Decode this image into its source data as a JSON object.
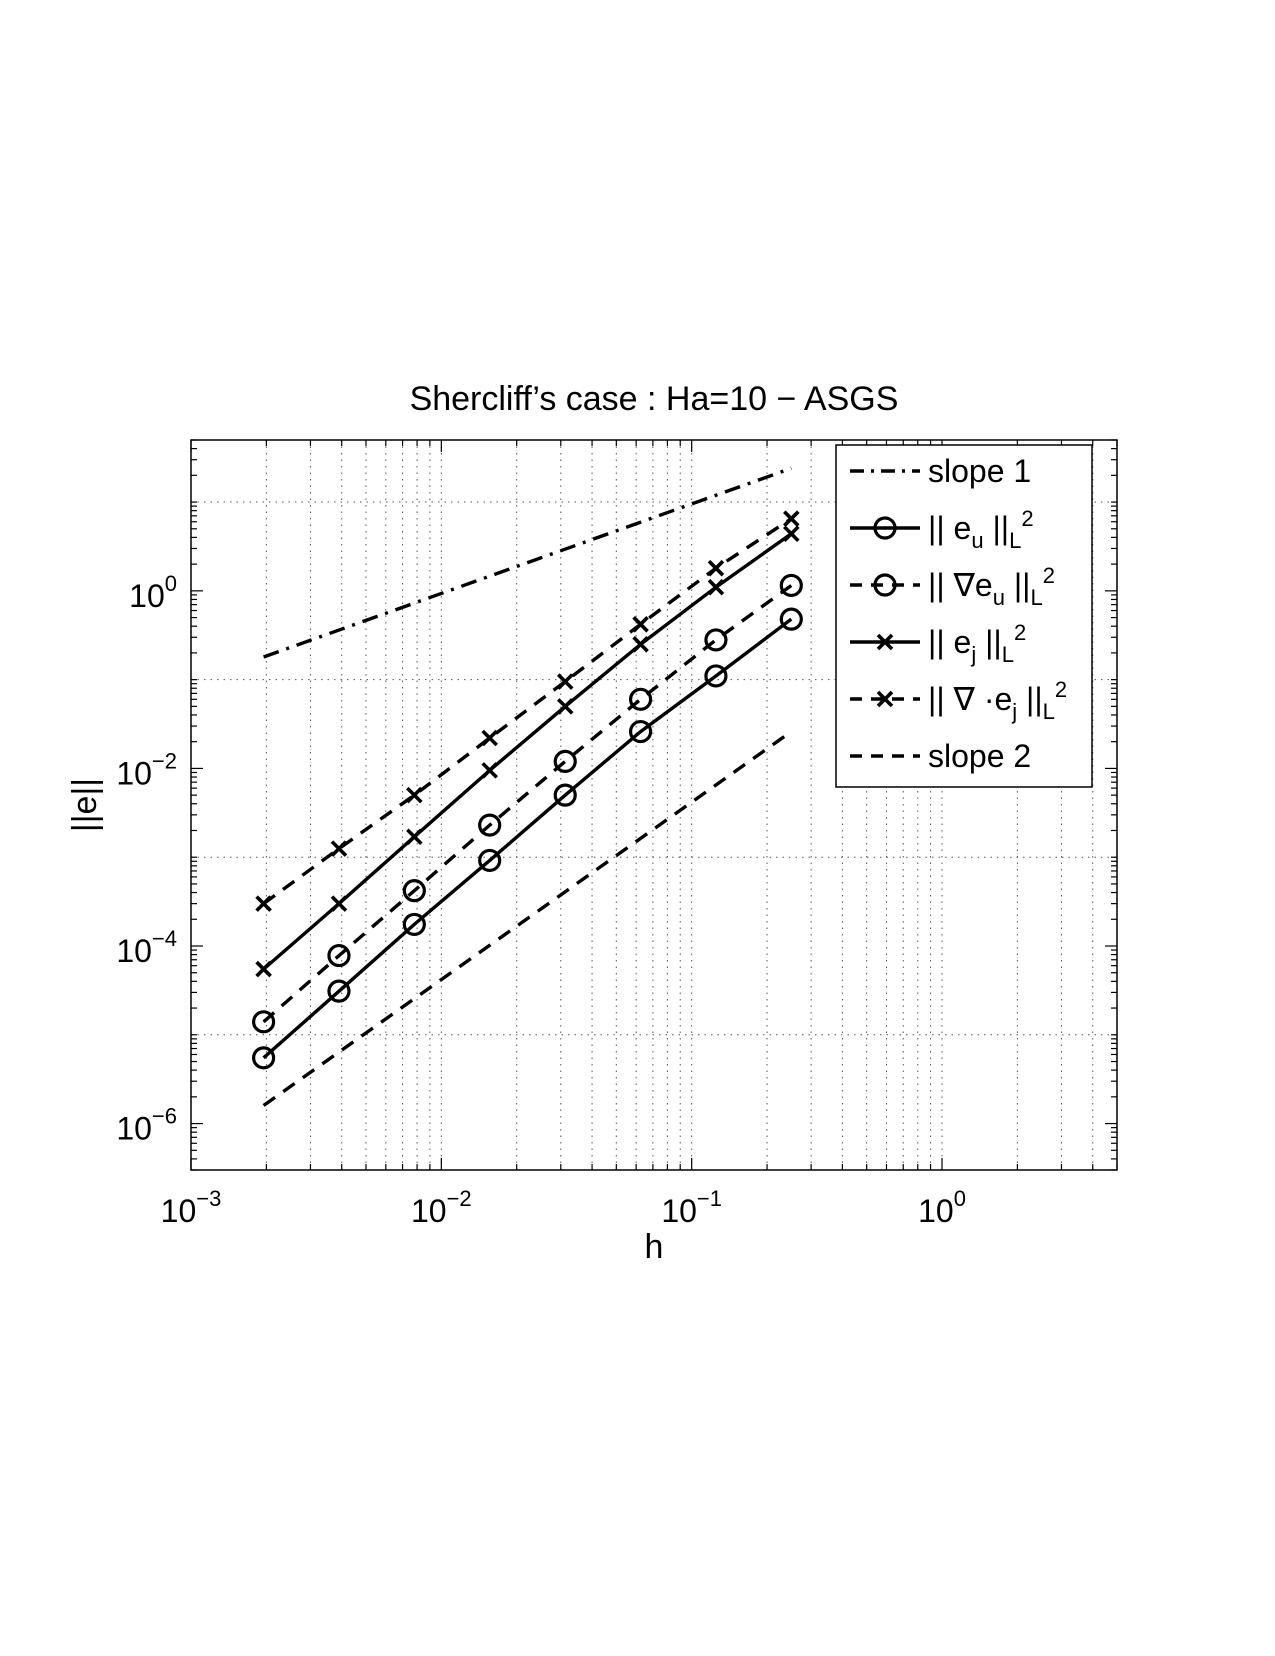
{
  "chart_data": {
    "type": "line",
    "title": "Shercliff’s case : Ha=10 − ASGS",
    "xlabel": "h",
    "ylabel": "||e||",
    "xscale": "log",
    "yscale": "log",
    "xlim": [
      0.001,
      5
    ],
    "ylim": [
      3e-07,
      50
    ],
    "grid": true,
    "legend_position": "top-right",
    "x_ticks": [
      {
        "base": "10",
        "exp": "−3",
        "value": 0.001
      },
      {
        "base": "10",
        "exp": "−2",
        "value": 0.01
      },
      {
        "base": "10",
        "exp": "−1",
        "value": 0.1
      },
      {
        "base": "10",
        "exp": "0",
        "value": 1
      }
    ],
    "y_ticks": [
      {
        "base": "10",
        "exp": "−6",
        "value": 1e-06
      },
      {
        "base": "10",
        "exp": "−4",
        "value": 0.0001
      },
      {
        "base": "10",
        "exp": "−2",
        "value": 0.01
      },
      {
        "base": "10",
        "exp": "0",
        "value": 1
      }
    ],
    "series": [
      {
        "legend": {
          "main": "slope 1",
          "sub": "",
          "sup": ""
        },
        "style": "dashdot",
        "marker": "none",
        "x": [
          0.00195,
          0.25
        ],
        "y": [
          0.18,
          24
        ]
      },
      {
        "legend": {
          "main": "|| e",
          "sub": "u",
          "tail": " ||",
          "sub2": "L",
          "sup": "2"
        },
        "style": "solid",
        "marker": "circle",
        "x": [
          0.00195,
          0.0039,
          0.0078,
          0.0156,
          0.03125,
          0.0625,
          0.125,
          0.25
        ],
        "y": [
          5.5e-06,
          3.1e-05,
          0.000175,
          0.00092,
          0.005,
          0.026,
          0.11,
          0.48
        ]
      },
      {
        "legend": {
          "main": "|| ∇e",
          "sub": "u",
          "tail": " ||",
          "sub2": "L",
          "sup": "2"
        },
        "style": "dashed",
        "marker": "circle",
        "x": [
          0.00195,
          0.0039,
          0.0078,
          0.0156,
          0.03125,
          0.0625,
          0.125,
          0.25
        ],
        "y": [
          1.4e-05,
          7.8e-05,
          0.00042,
          0.0023,
          0.012,
          0.06,
          0.28,
          1.15
        ]
      },
      {
        "legend": {
          "main": "|| e",
          "sub": "j",
          "tail": " ||",
          "sub2": "L",
          "sup": "2"
        },
        "style": "solid",
        "marker": "x",
        "x": [
          0.00195,
          0.0039,
          0.0078,
          0.0156,
          0.03125,
          0.0625,
          0.125,
          0.25
        ],
        "y": [
          5.5e-05,
          0.0003,
          0.0017,
          0.0095,
          0.05,
          0.25,
          1.1,
          4.4
        ]
      },
      {
        "legend": {
          "main": "|| ∇ ·e",
          "sub": "j",
          "tail": " ||",
          "sub2": "L",
          "sup": "2"
        },
        "style": "dashed",
        "marker": "x",
        "x": [
          0.00195,
          0.0039,
          0.0078,
          0.0156,
          0.03125,
          0.0625,
          0.125,
          0.25
        ],
        "y": [
          0.0003,
          0.00125,
          0.005,
          0.022,
          0.095,
          0.42,
          1.8,
          6.5
        ]
      },
      {
        "legend": {
          "main": "slope 2",
          "sub": "",
          "sup": ""
        },
        "style": "dashed",
        "marker": "none",
        "x": [
          0.00195,
          0.25
        ],
        "y": [
          1.6e-06,
          0.026
        ]
      }
    ]
  }
}
